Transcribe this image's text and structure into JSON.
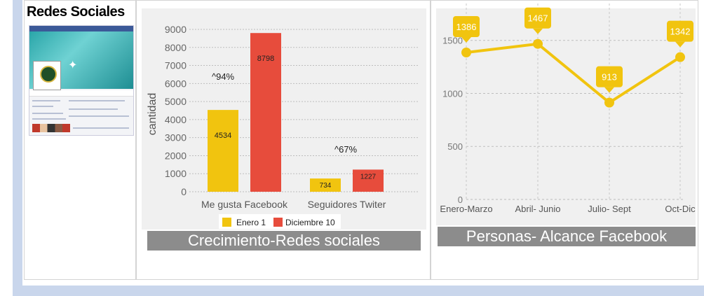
{
  "page": {
    "social_title": "Redes Sociales"
  },
  "colors": {
    "yellow": "#f1c40f",
    "red": "#e74c3c",
    "banner": "#8c8c8c",
    "frame": "#c9d6ec"
  },
  "chart_data": [
    {
      "type": "bar",
      "title": "Crecimiento-Redes sociales",
      "ylabel": "cantidad",
      "ylim": [
        0,
        9000
      ],
      "yticks": [
        0,
        1000,
        2000,
        3000,
        4000,
        5000,
        6000,
        7000,
        8000,
        9000
      ],
      "categories": [
        "Me gusta Facebook",
        "Seguidores Twiter"
      ],
      "series": [
        {
          "name": "Enero 1",
          "color": "#f1c40f",
          "values": [
            4534,
            734
          ]
        },
        {
          "name": "Diciembre 10",
          "color": "#e74c3c",
          "values": [
            8798,
            1227
          ]
        }
      ],
      "annotations": [
        "^94%",
        "^67%"
      ],
      "legend": "bottom",
      "grid": true
    },
    {
      "type": "line",
      "title": "Personas- Alcance Facebook",
      "categories": [
        "Enero-Marzo",
        "Abril- Junio",
        "Julio- Sept",
        "Oct-Dic"
      ],
      "values": [
        1386,
        1467,
        913,
        1342
      ],
      "yticks": [
        0,
        500,
        1000,
        1500
      ],
      "ylim": [
        0,
        1650
      ],
      "color": "#f1c40f",
      "grid": true
    }
  ]
}
